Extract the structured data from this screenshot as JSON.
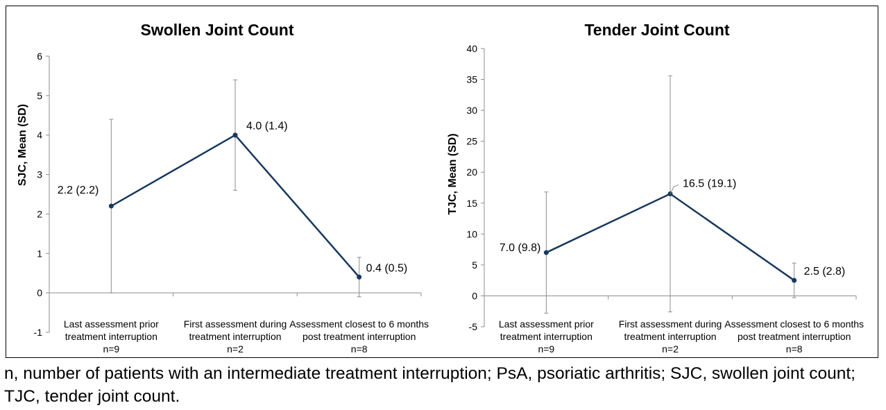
{
  "chart_data": [
    {
      "type": "line",
      "title": "Swollen Joint Count",
      "ylabel": "SJC, Mean (SD)",
      "xlabel": "",
      "ylim": [
        -1,
        6
      ],
      "yticks": [
        -1,
        0,
        1,
        2,
        3,
        4,
        5,
        6
      ],
      "grid": false,
      "legend": "none",
      "color": "#17375E",
      "categories": [
        [
          "Last assessment prior",
          "treatment interruption",
          "n=9"
        ],
        [
          "First assessment during",
          "treatment interruption",
          "n=2"
        ],
        [
          "Assessment closest to 6 months",
          "post treatment interruption",
          "n=8"
        ]
      ],
      "series": [
        {
          "values": [
            2.2,
            4.0,
            0.4
          ],
          "error_low": [
            0.0,
            2.6,
            -0.1
          ],
          "error_high": [
            4.4,
            5.4,
            0.9
          ],
          "data_labels": [
            "2.2 (2.2)",
            "4.0 (1.4)",
            "0.4 (0.5)"
          ]
        }
      ]
    },
    {
      "type": "line",
      "title": "Tender Joint Count",
      "ylabel": "TJC, Mean (SD)",
      "xlabel": "",
      "ylim": [
        -5,
        40
      ],
      "yticks": [
        -5,
        0,
        5,
        10,
        15,
        20,
        25,
        30,
        35,
        40
      ],
      "grid": false,
      "legend": "none",
      "color": "#17375E",
      "categories": [
        [
          "Last assessment prior",
          "treatment interruption",
          "n=9"
        ],
        [
          "First assessment during",
          "treatment interruption",
          "n=2"
        ],
        [
          "Assessment closest to 6 months",
          "post treatment interruption",
          "n=8"
        ]
      ],
      "series": [
        {
          "values": [
            7.0,
            16.5,
            2.5
          ],
          "error_low": [
            -2.8,
            -2.6,
            -0.3
          ],
          "error_high": [
            16.8,
            35.6,
            5.3
          ],
          "data_labels": [
            "7.0 (9.8)",
            "16.5 (19.1)",
            "2.5 (2.8)"
          ]
        }
      ]
    }
  ],
  "footnote": "n, number of patients with an intermediate treatment interruption; PsA, psoriatic arthritis; SJC, swollen joint count; TJC, tender joint count."
}
